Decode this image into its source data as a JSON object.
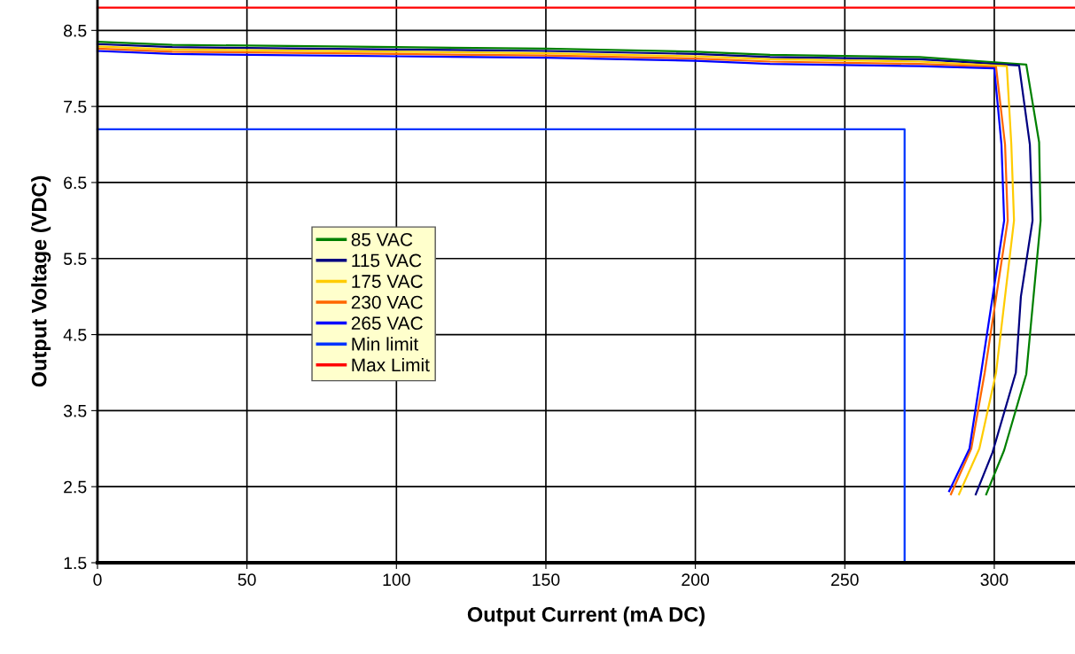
{
  "chart_data": {
    "type": "line",
    "xlabel": "Output Current (mA DC)",
    "ylabel": "Output Voltage (VDC)",
    "xlim": [
      0,
      327
    ],
    "ylim": [
      1.5,
      8.9
    ],
    "xticks": [
      0,
      50,
      100,
      150,
      200,
      250,
      300
    ],
    "yticks": [
      1.5,
      2.5,
      3.5,
      4.5,
      5.5,
      6.5,
      7.5,
      8.5
    ],
    "grid": true,
    "legend": "center left",
    "line_style": "solid",
    "marker": "none",
    "series": [
      {
        "name": "85 VAC",
        "color": "#008000",
        "x": [
          0,
          25,
          100,
          150,
          200,
          225,
          275,
          310.7,
          315,
          315.5,
          310.7,
          303.3,
          297.3
        ],
        "values": [
          8.35,
          8.31,
          8.28,
          8.26,
          8.22,
          8.18,
          8.15,
          8.05,
          7.03,
          6.0,
          3.98,
          2.98,
          2.4
        ]
      },
      {
        "name": "115 VAC",
        "color": "#000080",
        "x": [
          0,
          25,
          100,
          150,
          200,
          225,
          275,
          308.3,
          311.9,
          312.8,
          308.9,
          307.2,
          299.4,
          293.8
        ],
        "values": [
          8.32,
          8.28,
          8.25,
          8.23,
          8.19,
          8.15,
          8.12,
          8.04,
          7.0,
          6.0,
          5.0,
          4.0,
          2.95,
          2.4
        ]
      },
      {
        "name": "175 VAC",
        "color": "#ffcc00",
        "x": [
          0,
          25,
          100,
          150,
          200,
          225,
          275,
          304.2,
          305.7,
          306.6,
          300.6,
          295,
          288.2
        ],
        "values": [
          8.29,
          8.25,
          8.22,
          8.2,
          8.16,
          8.12,
          8.09,
          8.03,
          7.0,
          6.0,
          4.0,
          3.0,
          2.4
        ]
      },
      {
        "name": "230 VAC",
        "color": "#ff6600",
        "x": [
          0,
          25,
          100,
          150,
          200,
          225,
          275,
          300.6,
          303.6,
          304.5,
          296.8,
          292.3,
          285.5
        ],
        "values": [
          8.26,
          8.22,
          8.19,
          8.17,
          8.13,
          8.09,
          8.06,
          8.02,
          7.0,
          6.0,
          4.0,
          3.0,
          2.4
        ]
      },
      {
        "name": "265 VAC",
        "color": "#0000ff",
        "x": [
          0,
          25,
          100,
          150,
          200,
          225,
          275,
          300,
          302.4,
          303.3,
          295.6,
          291.7,
          284.9
        ],
        "values": [
          8.23,
          8.19,
          8.16,
          8.14,
          8.1,
          8.06,
          8.03,
          8.0,
          7.0,
          6.0,
          4.0,
          3.0,
          2.44
        ]
      },
      {
        "name": "Min limit",
        "color": "#0033ff",
        "x": [
          0,
          270,
          270
        ],
        "values": [
          7.2,
          7.2,
          1.5
        ]
      },
      {
        "name": "Max Limit",
        "color": "#ff0000",
        "x": [
          0,
          327
        ],
        "values": [
          8.8,
          8.8
        ]
      }
    ]
  }
}
